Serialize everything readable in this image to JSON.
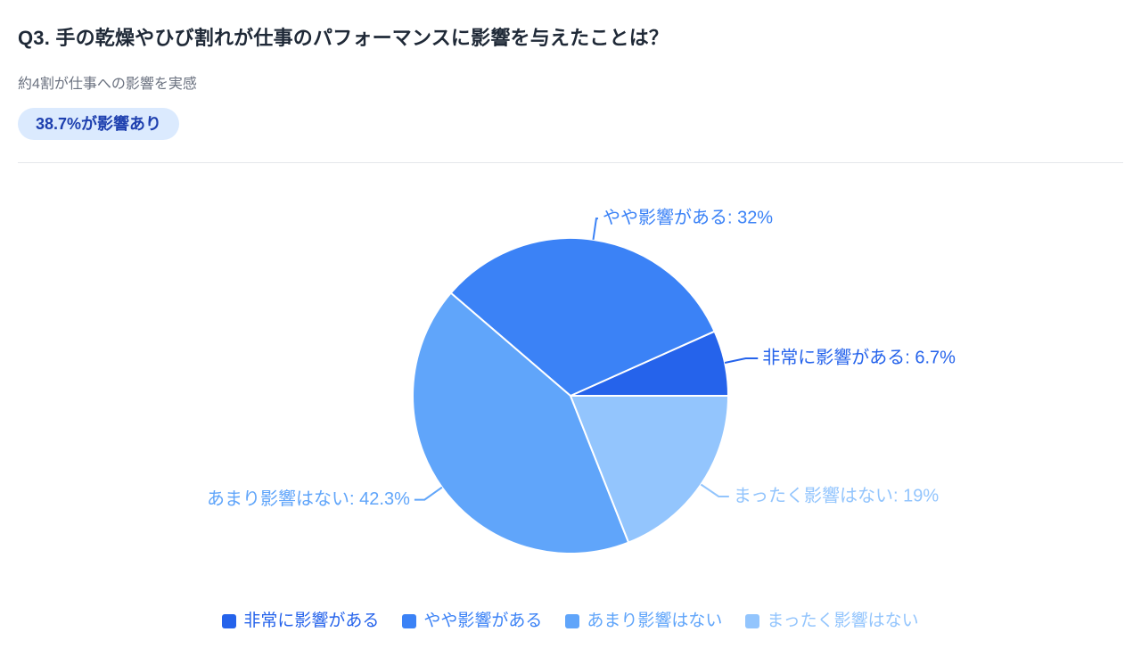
{
  "header": {
    "title": "Q3. 手の乾燥やひび割れが仕事のパフォーマンスに影響を与えたことは？",
    "subtitle": "約4割が仕事への影響を実感",
    "badge": "38.7%が影響あり"
  },
  "colors": {
    "title_text": "#1f2937",
    "subtitle_text": "#6b7280",
    "badge_bg": "#dbeafe",
    "badge_text": "#1e40af",
    "divider": "#e5e7eb",
    "slice_border": "#ffffff"
  },
  "chart_data": {
    "type": "pie",
    "categories": [
      "非常に影響がある",
      "やや影響がある",
      "あまり影響はない",
      "まったく影響はない"
    ],
    "values": [
      6.7,
      32,
      42.3,
      19
    ],
    "labels": [
      "非常に影響がある: 6.7%",
      "やや影響がある: 32%",
      "あまり影響はない: 42.3%",
      "まったく影響はない: 19%"
    ],
    "colors": [
      "#2563eb",
      "#3b82f6",
      "#60a5fa",
      "#93c5fd"
    ],
    "start_angle_deg": 0,
    "direction": "counterclockwise",
    "unit": "%",
    "legend_position": "bottom",
    "legend": [
      "非常に影響がある",
      "やや影響がある",
      "あまり影響はない",
      "まったく影響はない"
    ]
  }
}
